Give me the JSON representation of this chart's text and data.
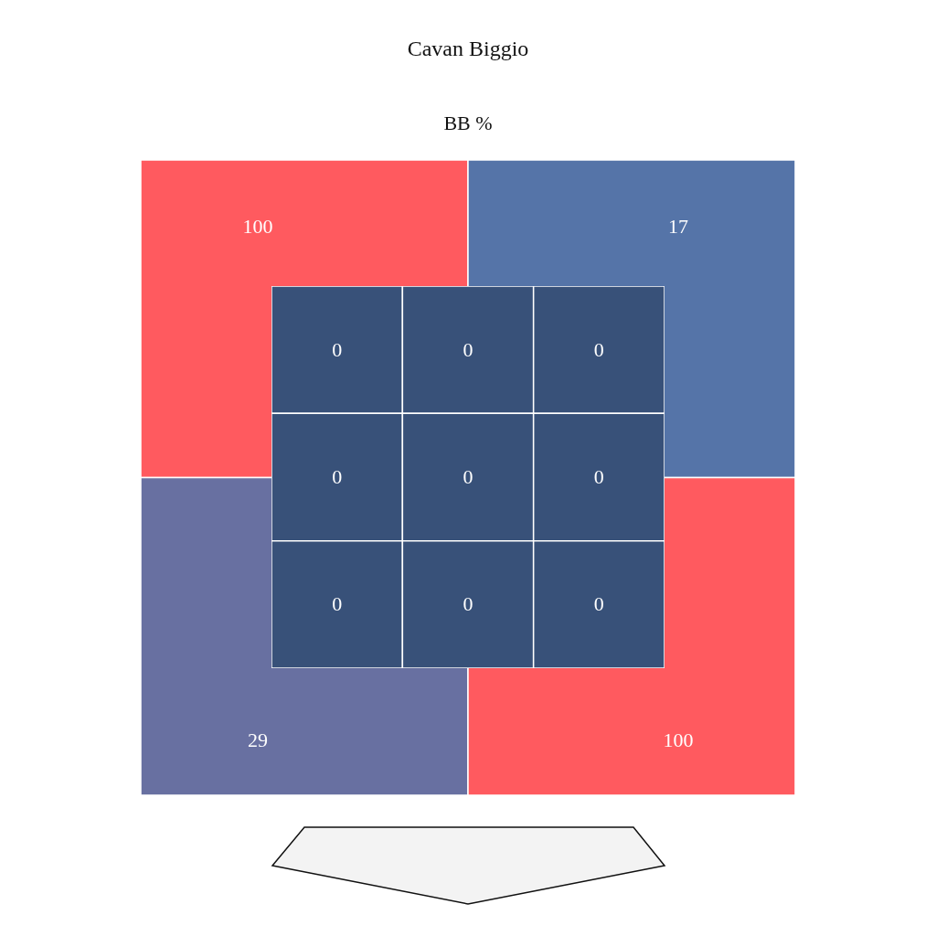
{
  "chart_data": [
    {
      "type": "heatmap",
      "title": "Cavan Biggio",
      "subtitle": "BB %",
      "categories": [
        null,
        null
      ],
      "y_categories": [
        null,
        null
      ],
      "cells": [
        [
          100,
          17
        ],
        [
          29,
          100
        ]
      ],
      "colors": [
        "#ff5a5f",
        "#5574a8",
        "#6870a1",
        "#ff5a5f"
      ],
      "data_labels": true
    },
    {
      "type": "heatmap",
      "categories": [
        null,
        null,
        null
      ],
      "y_categories": [
        null,
        null,
        null
      ],
      "cells": [
        [
          0,
          0,
          0
        ],
        [
          0,
          0,
          0
        ],
        [
          0,
          0,
          0
        ]
      ],
      "colors": [
        "#385179",
        "#385179",
        "#385179",
        "#385179",
        "#385179",
        "#385179",
        "#385179",
        "#385179",
        "#385179"
      ],
      "data_labels": true
    }
  ]
}
